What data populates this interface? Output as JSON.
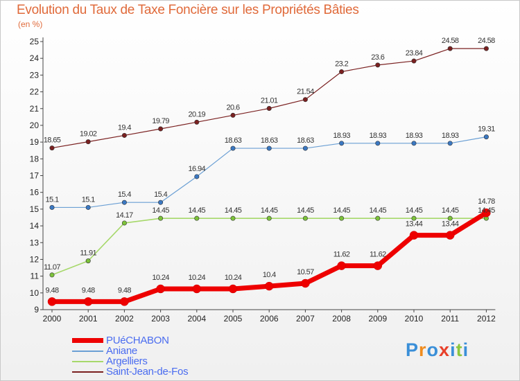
{
  "title": "Evolution du Taux de Taxe Foncière sur les Propriétés Bâties",
  "unit": "(en %)",
  "logo": {
    "text": "Proxiti",
    "letter_colors": [
      "#3a8fd8",
      "#f08c1e",
      "#3a8fd8",
      "#e8402a",
      "#3a8fd8",
      "#8cc63e",
      "#3a8fd8"
    ]
  },
  "chart_data": {
    "type": "line",
    "title": "Evolution du Taux de Taxe Foncière sur les Propriétés Bâties",
    "ylabel": "(en %)",
    "xlabel": "",
    "x": [
      "2000",
      "2001",
      "2002",
      "2003",
      "2004",
      "2005",
      "2006",
      "2007",
      "2008",
      "2009",
      "2010",
      "2011",
      "2012"
    ],
    "ylim": [
      9,
      25
    ],
    "yticks": [
      9,
      10,
      11,
      12,
      13,
      14,
      15,
      16,
      17,
      18,
      19,
      20,
      21,
      22,
      23,
      24,
      25
    ],
    "grid": false,
    "legend_position": "bottom-left",
    "series": [
      {
        "name": "Saint-Jean-de-Fos",
        "color": "#7a2020",
        "width": 1.2,
        "values": [
          18.65,
          19.02,
          19.4,
          19.79,
          20.19,
          20.6,
          21.01,
          21.54,
          23.2,
          23.6,
          23.84,
          24.58,
          24.58
        ],
        "labels": [
          "18.65",
          "19.02",
          "19.4",
          "19.79",
          "20.19",
          "20.6",
          "21.01",
          "21.54",
          "23.2",
          "23.6",
          "23.84",
          "24.58",
          "24.58"
        ]
      },
      {
        "name": "Aniane",
        "color": "#6a9fd4",
        "dot": "#3b78c2",
        "width": 1.2,
        "values": [
          15.1,
          15.1,
          15.4,
          15.4,
          16.94,
          18.63,
          18.63,
          18.63,
          18.93,
          18.93,
          18.93,
          18.93,
          19.31
        ],
        "labels": [
          "15.1",
          "15.1",
          "15.4",
          "15.4",
          "16.94",
          "18.63",
          "18.63",
          "18.63",
          "18.93",
          "18.93",
          "18.93",
          "18.93",
          "19.31"
        ]
      },
      {
        "name": "Argelliers",
        "color": "#a6d86a",
        "dot": "#7cc23a",
        "width": 1.6,
        "values": [
          11.07,
          11.91,
          14.17,
          14.45,
          14.45,
          14.45,
          14.45,
          14.45,
          14.45,
          14.45,
          14.45,
          14.45,
          14.45
        ],
        "labels": [
          "11.07",
          "11.91",
          "14.17",
          "14.45",
          "14.45",
          "14.45",
          "14.45",
          "14.45",
          "14.45",
          "14.45",
          "14.45",
          "14.45",
          "14.45"
        ]
      },
      {
        "name": "PUéCHABON",
        "color": "#ee0000",
        "width": 7,
        "values": [
          9.48,
          9.48,
          9.48,
          10.24,
          10.24,
          10.24,
          10.4,
          10.57,
          11.62,
          11.62,
          13.44,
          13.44,
          14.78
        ],
        "labels": [
          "9.48",
          "9.48",
          "9.48",
          "10.24",
          "10.24",
          "10.24",
          "10.4",
          "10.57",
          "11.62",
          "11.62",
          "13.44",
          "13.44",
          "14.78"
        ]
      }
    ]
  },
  "legend": [
    {
      "name": "PUéCHABON",
      "color": "#ee0000",
      "thickness": 7
    },
    {
      "name": "Aniane",
      "color": "#6a9fd4",
      "thickness": 2
    },
    {
      "name": "Argelliers",
      "color": "#a6d86a",
      "thickness": 2
    },
    {
      "name": "Saint-Jean-de-Fos",
      "color": "#7a2020",
      "thickness": 2
    }
  ]
}
